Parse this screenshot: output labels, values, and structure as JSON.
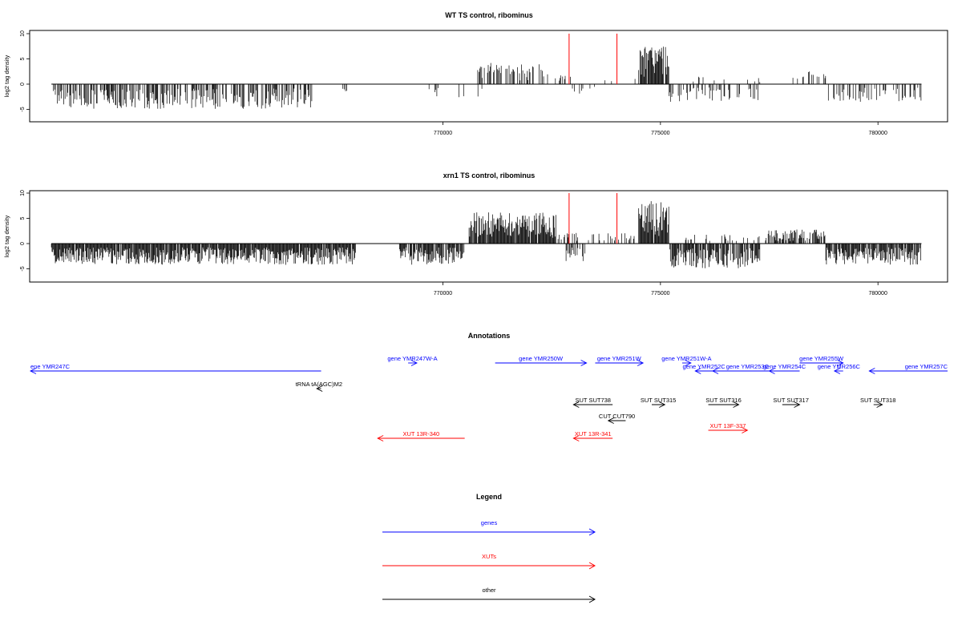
{
  "chart_data": [
    {
      "type": "bar",
      "title": "WT TS control, ribominus",
      "ylabel": "log2 tag density",
      "xlim": [
        760500,
        781600
      ],
      "ylim": [
        -7.5,
        10
      ],
      "x_ticks": [
        770000,
        775000,
        780000
      ],
      "y_ticks": [
        -5,
        0,
        5,
        10
      ],
      "series": [
        {
          "color": "#000000",
          "segments": [
            {
              "start": 761000,
              "end": 767000,
              "sign": -1,
              "amp": 3.5,
              "density": 0.55
            },
            {
              "start": 767700,
              "end": 767800,
              "sign": -1,
              "amp": 1.0,
              "density": 0.5
            },
            {
              "start": 769500,
              "end": 771000,
              "sign": -1,
              "amp": 2.0,
              "density": 0.12
            },
            {
              "start": 770800,
              "end": 772300,
              "sign": 1,
              "amp": 3.0,
              "density": 0.45
            },
            {
              "start": 772300,
              "end": 773000,
              "sign": 1,
              "amp": 1.5,
              "density": 0.25
            },
            {
              "start": 772900,
              "end": 773500,
              "sign": -1,
              "amp": 2.0,
              "density": 0.25
            },
            {
              "start": 773500,
              "end": 774500,
              "sign": 1,
              "amp": 1.0,
              "density": 0.08
            },
            {
              "start": 774500,
              "end": 775200,
              "sign": 1,
              "amp": 5.5,
              "density": 0.95
            },
            {
              "start": 775200,
              "end": 777300,
              "sign": -1,
              "amp": 2.5,
              "density": 0.25
            },
            {
              "start": 775500,
              "end": 777300,
              "sign": 1,
              "amp": 1.2,
              "density": 0.1
            },
            {
              "start": 778000,
              "end": 778800,
              "sign": 1,
              "amp": 2.0,
              "density": 0.3
            },
            {
              "start": 778800,
              "end": 781000,
              "sign": -1,
              "amp": 2.5,
              "density": 0.35
            }
          ]
        },
        {
          "color": "#ff0000",
          "bars": [
            {
              "x": 772900,
              "y": 10
            },
            {
              "x": 774000,
              "y": 10
            }
          ]
        }
      ]
    },
    {
      "type": "bar",
      "title": "xrn1 TS control, ribominus",
      "ylabel": "log2 tag density",
      "xlim": [
        760500,
        781600
      ],
      "ylim": [
        -7.5,
        10
      ],
      "x_ticks": [
        770000,
        775000,
        780000
      ],
      "y_ticks": [
        -5,
        0,
        5,
        10
      ],
      "series": [
        {
          "color": "#000000",
          "segments": [
            {
              "start": 761000,
              "end": 768000,
              "sign": -1,
              "amp": 3.0,
              "density": 0.95
            },
            {
              "start": 769000,
              "end": 770500,
              "sign": -1,
              "amp": 3.0,
              "density": 0.85
            },
            {
              "start": 770600,
              "end": 772600,
              "sign": 1,
              "amp": 4.5,
              "density": 0.98
            },
            {
              "start": 772600,
              "end": 773100,
              "sign": 1,
              "amp": 1.5,
              "density": 0.4
            },
            {
              "start": 772800,
              "end": 773300,
              "sign": -1,
              "amp": 2.5,
              "density": 0.5
            },
            {
              "start": 773300,
              "end": 774500,
              "sign": 1,
              "amp": 1.5,
              "density": 0.35
            },
            {
              "start": 774500,
              "end": 775200,
              "sign": 1,
              "amp": 6.0,
              "density": 0.98
            },
            {
              "start": 775200,
              "end": 777300,
              "sign": -1,
              "amp": 3.5,
              "density": 0.85
            },
            {
              "start": 775500,
              "end": 777300,
              "sign": 1,
              "amp": 1.5,
              "density": 0.2
            },
            {
              "start": 777400,
              "end": 778800,
              "sign": 1,
              "amp": 2.0,
              "density": 0.7
            },
            {
              "start": 778800,
              "end": 779200,
              "sign": -1,
              "amp": 3.0,
              "density": 0.9
            },
            {
              "start": 779200,
              "end": 781000,
              "sign": -1,
              "amp": 3.0,
              "density": 0.8
            }
          ]
        },
        {
          "color": "#ff0000",
          "bars": [
            {
              "x": 772900,
              "y": 10
            },
            {
              "x": 774000,
              "y": 10
            }
          ]
        }
      ]
    }
  ],
  "annotations": {
    "title": "Annotations",
    "features": [
      {
        "label": "ene YMR247C",
        "x1": 760500,
        "x2": 767200,
        "row": 1,
        "dir": "left",
        "color": "blue"
      },
      {
        "label": "gene YMR247W-A",
        "x1": 769200,
        "x2": 769400,
        "row": 0,
        "dir": "right",
        "color": "blue"
      },
      {
        "label": "gene YMR250W",
        "x1": 771200,
        "x2": 773300,
        "row": 0,
        "dir": "right",
        "color": "blue"
      },
      {
        "label": "gene YMR251W",
        "x1": 773500,
        "x2": 774600,
        "row": 0,
        "dir": "right",
        "color": "blue"
      },
      {
        "label": "gene YMR251W-A",
        "x1": 775500,
        "x2": 775700,
        "row": 0,
        "dir": "right",
        "color": "blue"
      },
      {
        "label": "gene YMR252C",
        "x1": 775800,
        "x2": 776200,
        "row": 1,
        "dir": "left",
        "color": "blue"
      },
      {
        "label": "gene YMR253C",
        "x1": 776200,
        "x2": 777800,
        "row": 1,
        "dir": "left",
        "color": "blue"
      },
      {
        "label": "gene YMR254C",
        "x1": 777500,
        "x2": 778200,
        "row": 1,
        "dir": "left",
        "color": "blue"
      },
      {
        "label": "gene YMR255W",
        "x1": 778200,
        "x2": 779200,
        "row": 0,
        "dir": "right",
        "color": "blue"
      },
      {
        "label": "gene YMR256C",
        "x1": 779000,
        "x2": 779200,
        "row": 1,
        "dir": "left",
        "color": "blue"
      },
      {
        "label": "gene YMR257C",
        "x1": 779800,
        "x2": 783000,
        "row": 1,
        "dir": "left",
        "color": "blue"
      },
      {
        "label": "tRNA tA(AGC)M2",
        "x1": 767100,
        "x2": 767200,
        "row": 2,
        "dir": "left",
        "color": "black"
      },
      {
        "label": "SUT SUT738",
        "x1": 773000,
        "x2": 773900,
        "row": 3,
        "dir": "left",
        "color": "black"
      },
      {
        "label": "SUT SUT315",
        "x1": 774800,
        "x2": 775100,
        "row": 3,
        "dir": "right",
        "color": "black"
      },
      {
        "label": "SUT SUT316",
        "x1": 776100,
        "x2": 776800,
        "row": 3,
        "dir": "right",
        "color": "black"
      },
      {
        "label": "SUT SUT317",
        "x1": 777800,
        "x2": 778200,
        "row": 3,
        "dir": "right",
        "color": "black"
      },
      {
        "label": "SUT SUT318",
        "x1": 779900,
        "x2": 780100,
        "row": 3,
        "dir": "right",
        "color": "black"
      },
      {
        "label": "CUT CUT790",
        "x1": 773800,
        "x2": 774200,
        "row": 4,
        "dir": "left",
        "color": "black"
      },
      {
        "label": "XUT 13R-340",
        "x1": 768500,
        "x2": 770500,
        "row": 5,
        "dir": "left",
        "color": "red"
      },
      {
        "label": "XUT 13R-341",
        "x1": 773000,
        "x2": 773900,
        "row": 5,
        "dir": "left",
        "color": "red"
      },
      {
        "label": "XUT 13F-337",
        "x1": 776100,
        "x2": 777000,
        "row": 6,
        "dir": "right",
        "color": "red"
      }
    ]
  },
  "legend": {
    "title": "Legend",
    "items": [
      {
        "label": "genes",
        "color": "blue"
      },
      {
        "label": "XUTs",
        "color": "red"
      },
      {
        "label": "other",
        "color": "black"
      }
    ]
  },
  "colors": {
    "blue": "#0000ff",
    "red": "#ff0000",
    "black": "#000000"
  }
}
